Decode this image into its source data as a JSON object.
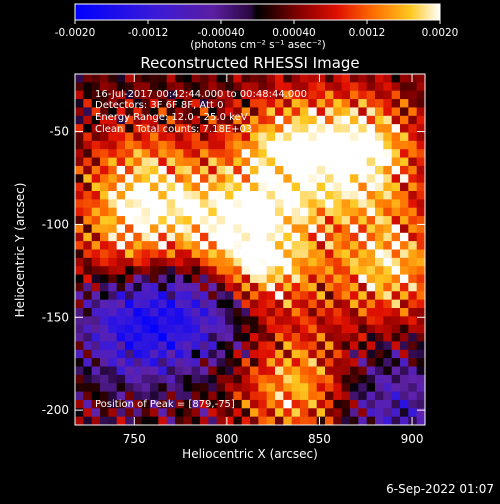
{
  "colorbar": {
    "ticks": [
      "-0.0020",
      "-0.0012",
      "-0.00040",
      "0.00040",
      "0.0012",
      "0.0020"
    ],
    "tick_values": [
      -0.002,
      -0.0012,
      -0.0004,
      0.0004,
      0.0012,
      0.002
    ],
    "range": [
      -0.002,
      0.002
    ],
    "units_label": "(photons cm⁻² s⁻¹ asec⁻²)"
  },
  "info": {
    "line1": "16-Jul-2017 00:42:44.000 to 00:48:44.000",
    "line2": "Detectors: 3F 6F 8F, Att 0",
    "line3": "Energy Range: 12.0 - 25.0 keV",
    "line4": "Clean    Total counts: 7.18E+03"
  },
  "peak_label": "Position of Peak = [879,-75]",
  "footer_date": "6-Sep-2022 01:07",
  "chart_data": {
    "type": "heatmap",
    "title": "Reconstructed RHESSI Image",
    "xlabel": "Heliocentric X (arcsec)",
    "ylabel": "Heliocentric Y (arcsec)",
    "xlim": [
      718,
      907
    ],
    "ylim": [
      -208,
      -19
    ],
    "x_ticks": [
      750,
      800,
      850,
      900
    ],
    "y_ticks": [
      -50,
      -100,
      -150,
      -200
    ],
    "grid": false,
    "colormap": "red-temperature (black-red-orange-yellow-white) positive, purple-blue negative",
    "peak_position": [
      879,
      -75
    ],
    "bright_regions": [
      {
        "x": 815,
        "y": -115,
        "intensity": 1.0
      },
      {
        "x": 830,
        "y": -60,
        "intensity": 0.8
      },
      {
        "x": 870,
        "y": -60,
        "intensity": 0.95
      },
      {
        "x": 885,
        "y": -120,
        "intensity": 0.75
      },
      {
        "x": 835,
        "y": -185,
        "intensity": 0.7
      },
      {
        "x": 752,
        "y": -75,
        "intensity": 0.65
      },
      {
        "x": 745,
        "y": -110,
        "intensity": 0.55
      },
      {
        "x": 790,
        "y": -95,
        "intensity": 0.5
      }
    ],
    "dark_regions": [
      {
        "x": 750,
        "y": -150,
        "intensity": -0.9
      },
      {
        "x": 790,
        "y": -140,
        "intensity": -0.6
      },
      {
        "x": 885,
        "y": -195,
        "intensity": -0.5
      }
    ]
  }
}
